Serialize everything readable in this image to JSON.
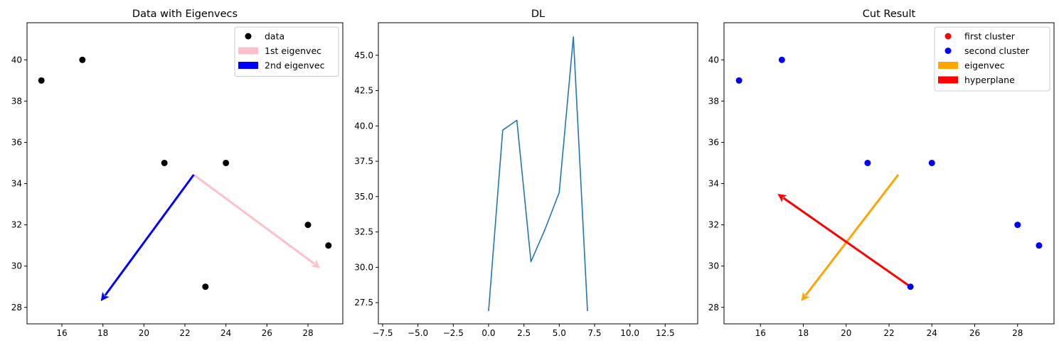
{
  "chart_data": [
    {
      "type": "scatter",
      "title": "Data with Eigenvecs",
      "xlim": [
        14.3,
        29.7
      ],
      "ylim": [
        27.2,
        41.8
      ],
      "xticks": [
        16,
        18,
        20,
        22,
        24,
        26,
        28
      ],
      "yticks": [
        28,
        30,
        32,
        34,
        36,
        38,
        40
      ],
      "legend_location": "upper right",
      "series": [
        {
          "name": "data",
          "kind": "scatter",
          "color": "#000000",
          "x": [
            15,
            17,
            21,
            24,
            28,
            29,
            23
          ],
          "y": [
            39,
            40,
            35,
            35,
            32,
            31,
            29
          ]
        }
      ],
      "arrows": [
        {
          "name": "1st eigenvec",
          "color": "#ffc0cb",
          "start": [
            22.43,
            34.43
          ],
          "end": [
            28.6,
            29.9
          ]
        },
        {
          "name": "2nd eigenvec",
          "color": "#0000ff",
          "start": [
            22.43,
            34.43
          ],
          "end": [
            17.9,
            28.3
          ]
        }
      ]
    },
    {
      "type": "line",
      "title": "DL",
      "xlim": [
        -7.8,
        14.8
      ],
      "ylim": [
        26.0,
        47.3
      ],
      "xticks": [
        -7.5,
        -5.0,
        -2.5,
        0.0,
        2.5,
        5.0,
        7.5,
        10.0,
        12.5
      ],
      "xtick_labels": [
        "−7.5",
        "−5.0",
        "−2.5",
        "0.0",
        "2.5",
        "5.0",
        "7.5",
        "10.0",
        "12.5"
      ],
      "yticks": [
        27.5,
        30.0,
        32.5,
        35.0,
        37.5,
        40.0,
        42.5,
        45.0
      ],
      "ytick_labels": [
        "27.5",
        "30.0",
        "32.5",
        "35.0",
        "37.5",
        "40.0",
        "42.5",
        "45.0"
      ],
      "series": [
        {
          "kind": "line",
          "color": "#1f77b4",
          "x": [
            0,
            1,
            2,
            3,
            4,
            5,
            6,
            7
          ],
          "y": [
            26.9,
            39.7,
            40.4,
            30.4,
            32.7,
            35.3,
            46.3,
            26.9
          ]
        }
      ]
    },
    {
      "type": "scatter",
      "title": "Cut Result",
      "xlim": [
        14.3,
        29.7
      ],
      "ylim": [
        27.2,
        41.8
      ],
      "xticks": [
        16,
        18,
        20,
        22,
        24,
        26,
        28
      ],
      "yticks": [
        28,
        30,
        32,
        34,
        36,
        38,
        40
      ],
      "legend_location": "upper right",
      "series": [
        {
          "name": "first cluster",
          "kind": "scatter",
          "color": "#ff0000",
          "x": [],
          "y": []
        },
        {
          "name": "second cluster",
          "kind": "scatter",
          "color": "#0000ff",
          "x": [
            15,
            17,
            21,
            24,
            28,
            29,
            23
          ],
          "y": [
            39,
            40,
            35,
            35,
            32,
            31,
            29
          ]
        }
      ],
      "arrows": [
        {
          "name": "eigenvec",
          "color": "#ffa500",
          "start": [
            22.43,
            34.43
          ],
          "end": [
            17.9,
            28.3
          ]
        },
        {
          "name": "hyperplane",
          "color": "#ff0000",
          "start": [
            23,
            29
          ],
          "end": [
            16.8,
            33.5
          ]
        }
      ]
    }
  ]
}
